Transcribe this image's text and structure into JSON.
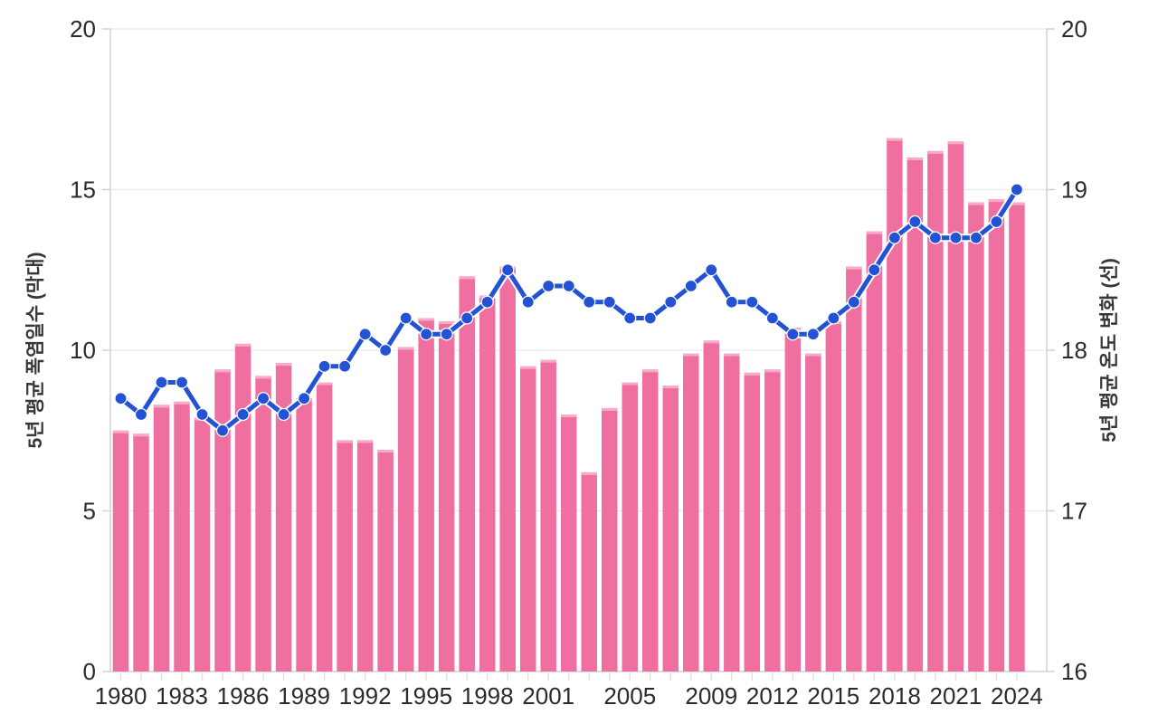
{
  "chart_data": {
    "type": "combo",
    "title": "",
    "categories": [
      1980,
      1981,
      1982,
      1983,
      1984,
      1985,
      1986,
      1987,
      1988,
      1989,
      1990,
      1991,
      1992,
      1993,
      1994,
      1995,
      1996,
      1997,
      1998,
      1999,
      2000,
      2001,
      2002,
      2003,
      2004,
      2005,
      2006,
      2007,
      2008,
      2009,
      2010,
      2011,
      2012,
      2013,
      2014,
      2015,
      2016,
      2017,
      2018,
      2019,
      2020,
      2021,
      2022,
      2023,
      2024
    ],
    "series": [
      {
        "name": "5년 평균 폭염일수 (막대)",
        "type": "bar",
        "axis": "left",
        "color": "#EF6FA1",
        "values": [
          7.5,
          7.4,
          8.3,
          8.4,
          7.9,
          9.4,
          10.2,
          9.2,
          9.6,
          8.5,
          9.0,
          7.2,
          7.2,
          6.9,
          10.1,
          11.0,
          10.9,
          12.3,
          11.7,
          12.6,
          9.5,
          9.7,
          8.0,
          6.2,
          8.2,
          9.0,
          9.4,
          8.9,
          9.9,
          10.3,
          9.9,
          9.3,
          9.4,
          10.7,
          9.9,
          10.9,
          12.6,
          13.7,
          16.6,
          16.0,
          16.2,
          16.5,
          14.6,
          14.7,
          14.6
        ]
      },
      {
        "name": "5년 평균 온도 변화 (선)",
        "type": "line",
        "axis": "right",
        "color": "#2353D4",
        "values": [
          17.7,
          17.6,
          17.8,
          17.8,
          17.6,
          17.5,
          17.6,
          17.7,
          17.6,
          17.7,
          17.9,
          17.9,
          18.1,
          18.0,
          18.2,
          18.1,
          18.1,
          18.2,
          18.3,
          18.5,
          18.3,
          18.4,
          18.4,
          18.3,
          18.3,
          18.2,
          18.2,
          18.3,
          18.4,
          18.5,
          18.3,
          18.3,
          18.2,
          18.1,
          18.1,
          18.2,
          18.3,
          18.5,
          18.7,
          18.8,
          18.7,
          18.7,
          18.7,
          18.8,
          19.0
        ]
      }
    ],
    "left_axis": {
      "label": "5년 평균 폭염일수 (막대)",
      "min": 0,
      "max": 20,
      "ticks": [
        0,
        5,
        10,
        15,
        20
      ]
    },
    "right_axis": {
      "label": "5년 평균 온도 변화 (선)",
      "min": 16,
      "max": 20,
      "ticks": [
        16,
        17,
        18,
        19,
        20
      ]
    },
    "x_tick_labels": [
      1980,
      1983,
      1986,
      1989,
      1992,
      1995,
      1998,
      2001,
      2005,
      2009,
      2012,
      2015,
      2018,
      2021,
      2024
    ],
    "grid": "horizontal",
    "legend": "none"
  },
  "colors": {
    "background": "#ffffff",
    "bar_fill": "#EF6FA1",
    "bar_top_cap": "#F7ABC8",
    "line": "#2353D4",
    "line_casing": "#ffffff",
    "gridline": "#e9e9e9",
    "axis_line": "#d2d2d2",
    "minor_tick": "#e2e2e2",
    "tick_text": "#2b2b2b",
    "axis_title_text": "#373737"
  }
}
